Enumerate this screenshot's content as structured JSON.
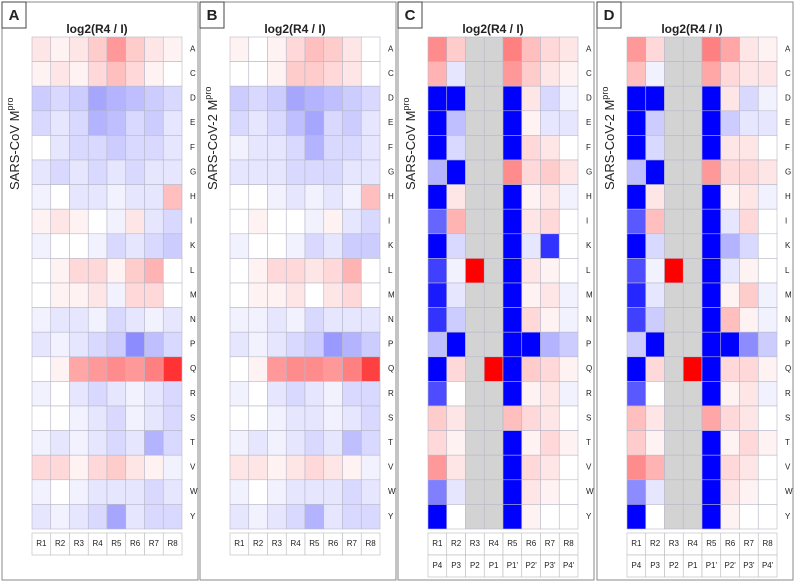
{
  "chart_data": [
    {
      "type": "heatmap",
      "panel_label": "A",
      "title": "log2(R4 / I)",
      "ylabel": "SARS-CoV M",
      "ylabel_superscript": "pro",
      "categories": [
        "R1",
        "R2",
        "R3",
        "R4",
        "R5",
        "R6",
        "R7",
        "R8"
      ],
      "rows": [
        "A",
        "C",
        "D",
        "E",
        "F",
        "G",
        "H",
        "I",
        "K",
        "L",
        "M",
        "N",
        "P",
        "Q",
        "R",
        "S",
        "T",
        "V",
        "W",
        "Y"
      ],
      "zlim": [
        -2,
        2
      ],
      "colors": [
        "#0000ff",
        "#ffffff",
        "#ff0000"
      ],
      "null_color": "#d3d3d3",
      "values": [
        [
          0.2,
          0.1,
          0.2,
          0.4,
          0.8,
          0.4,
          0.2,
          0.1
        ],
        [
          0.1,
          0.2,
          0.1,
          0.3,
          0.5,
          0.3,
          0.1,
          0
        ],
        [
          -0.4,
          -0.3,
          -0.4,
          -0.7,
          -0.6,
          -0.5,
          -0.4,
          -0.3
        ],
        [
          -0.3,
          -0.2,
          -0.3,
          -0.6,
          -0.5,
          -0.3,
          -0.4,
          -0.2
        ],
        [
          0,
          -0.2,
          -0.3,
          -0.3,
          -0.4,
          -0.3,
          -0.3,
          -0.2
        ],
        [
          -0.2,
          -0.3,
          -0.2,
          -0.3,
          -0.2,
          -0.3,
          -0.2,
          -0.2
        ],
        [
          -0.1,
          0,
          -0.2,
          -0.2,
          -0.1,
          -0.2,
          -0.2,
          0.5
        ],
        [
          0.1,
          0.2,
          0.1,
          0,
          -0.1,
          0.2,
          -0.2,
          -0.3
        ],
        [
          -0.1,
          0,
          0,
          -0.1,
          -0.3,
          -0.2,
          -0.3,
          -0.4
        ],
        [
          0,
          0.1,
          0.3,
          0.3,
          0.1,
          0.4,
          0.6,
          0
        ],
        [
          0,
          0.1,
          0.1,
          0.2,
          -0.1,
          0.3,
          0.3,
          0
        ],
        [
          -0.1,
          -0.2,
          -0.2,
          -0.1,
          -0.3,
          -0.2,
          -0.1,
          -0.2
        ],
        [
          -0.2,
          -0.1,
          -0.2,
          -0.3,
          -0.4,
          -0.9,
          -0.5,
          -0.3
        ],
        [
          0,
          0.1,
          0.7,
          0.8,
          0.9,
          0.8,
          1.0,
          1.6
        ],
        [
          -0.1,
          0,
          -0.2,
          -0.3,
          -0.2,
          -0.1,
          -0.2,
          -0.3
        ],
        [
          0,
          0,
          -0.1,
          -0.2,
          -0.3,
          -0.1,
          -0.2,
          -0.3
        ],
        [
          -0.1,
          -0.2,
          -0.1,
          -0.2,
          -0.3,
          -0.2,
          -0.6,
          -0.3
        ],
        [
          0.3,
          0.3,
          0.1,
          0.3,
          0.4,
          0.2,
          0.1,
          -0.1
        ],
        [
          -0.1,
          0,
          -0.1,
          -0.2,
          -0.2,
          -0.2,
          -0.3,
          -0.2
        ],
        [
          -0.2,
          -0.1,
          -0.2,
          -0.3,
          -0.7,
          -0.2,
          -0.3,
          -0.3
        ]
      ]
    },
    {
      "type": "heatmap",
      "panel_label": "B",
      "title": "log2(R4 / I)",
      "ylabel": "SARS-CoV-2 M",
      "ylabel_superscript": "pro",
      "categories": [
        "R1",
        "R2",
        "R3",
        "R4",
        "R5",
        "R6",
        "R7",
        "R8"
      ],
      "rows": [
        "A",
        "C",
        "D",
        "E",
        "F",
        "G",
        "H",
        "I",
        "K",
        "L",
        "M",
        "N",
        "P",
        "Q",
        "R",
        "S",
        "T",
        "V",
        "W",
        "Y"
      ],
      "zlim": [
        -2,
        2
      ],
      "colors": [
        "#0000ff",
        "#ffffff",
        "#ff0000"
      ],
      "null_color": "#d3d3d3",
      "values": [
        [
          0.1,
          0,
          0.1,
          0.3,
          0.5,
          0.4,
          0.2,
          0
        ],
        [
          0,
          0,
          0.1,
          0.4,
          0.4,
          0.3,
          0.2,
          0
        ],
        [
          -0.4,
          -0.3,
          -0.4,
          -0.7,
          -0.6,
          -0.5,
          -0.4,
          -0.3
        ],
        [
          -0.3,
          -0.2,
          -0.3,
          -0.5,
          -0.7,
          -0.3,
          -0.4,
          -0.2
        ],
        [
          -0.1,
          -0.2,
          -0.2,
          -0.3,
          -0.6,
          -0.3,
          -0.3,
          -0.2
        ],
        [
          -0.2,
          -0.2,
          -0.2,
          -0.3,
          -0.3,
          -0.3,
          -0.2,
          -0.2
        ],
        [
          0,
          0,
          -0.1,
          -0.2,
          -0.1,
          -0.2,
          -0.1,
          0.5
        ],
        [
          0,
          0.1,
          0,
          0,
          -0.1,
          0.1,
          -0.2,
          -0.3
        ],
        [
          -0.1,
          0,
          0,
          -0.1,
          -0.3,
          -0.2,
          -0.4,
          -0.4
        ],
        [
          0,
          0.1,
          0.3,
          0.3,
          0.2,
          0.3,
          0.6,
          0
        ],
        [
          0,
          0.1,
          0.1,
          0.2,
          0,
          0.2,
          0.3,
          0
        ],
        [
          -0.1,
          -0.1,
          -0.2,
          -0.1,
          -0.3,
          -0.2,
          -0.2,
          -0.2
        ],
        [
          -0.2,
          -0.1,
          -0.2,
          -0.3,
          -0.4,
          -0.8,
          -0.6,
          -0.4
        ],
        [
          0,
          0.1,
          0.8,
          0.9,
          0.9,
          0.8,
          1.0,
          1.5
        ],
        [
          -0.1,
          0,
          -0.2,
          -0.3,
          -0.2,
          -0.1,
          -0.3,
          -0.3
        ],
        [
          0,
          0,
          -0.1,
          -0.2,
          -0.2,
          -0.1,
          -0.2,
          -0.3
        ],
        [
          -0.1,
          -0.2,
          -0.1,
          -0.2,
          -0.3,
          -0.2,
          -0.5,
          -0.3
        ],
        [
          0.2,
          0.2,
          0.1,
          0.2,
          0.3,
          0.2,
          0.1,
          -0.1
        ],
        [
          -0.1,
          0,
          -0.1,
          -0.2,
          -0.2,
          -0.2,
          -0.3,
          -0.2
        ],
        [
          -0.2,
          -0.1,
          -0.2,
          -0.3,
          -0.6,
          -0.2,
          -0.3,
          -0.3
        ]
      ]
    },
    {
      "type": "heatmap",
      "panel_label": "C",
      "title": "log2(R4 / I)",
      "ylabel": "SARS-CoV M",
      "ylabel_superscript": "pro",
      "categories": [
        "R1",
        "R2",
        "R3",
        "R4",
        "R5",
        "R6",
        "R7",
        "R8"
      ],
      "categories2": [
        "P4",
        "P3",
        "P2",
        "P1",
        "P1'",
        "P2'",
        "P3'",
        "P4'"
      ],
      "rows": [
        "A",
        "C",
        "D",
        "E",
        "F",
        "G",
        "H",
        "I",
        "K",
        "L",
        "M",
        "N",
        "P",
        "Q",
        "R",
        "S",
        "T",
        "V",
        "W",
        "Y"
      ],
      "zlim": [
        -2,
        2
      ],
      "colors": [
        "#0000ff",
        "#ffffff",
        "#ff0000"
      ],
      "null_color": "#d3d3d3",
      "values": [
        [
          0.9,
          0.4,
          null,
          null,
          1.0,
          0.5,
          0.3,
          0.2
        ],
        [
          0.6,
          -0.2,
          null,
          null,
          0.8,
          0.4,
          0.2,
          0.1
        ],
        [
          -2,
          -2,
          null,
          null,
          -2,
          0.2,
          -0.3,
          -0.1
        ],
        [
          -2,
          -0.5,
          null,
          null,
          -2,
          0.1,
          -0.2,
          -0.2
        ],
        [
          -2,
          -0.3,
          null,
          null,
          -2,
          0.3,
          0.2,
          0
        ],
        [
          -0.6,
          -2,
          null,
          null,
          0.9,
          0.3,
          0.4,
          0.2
        ],
        [
          -2,
          0.2,
          null,
          null,
          -2,
          0.1,
          0.2,
          -0.1
        ],
        [
          -1.2,
          0.6,
          null,
          null,
          -2,
          0.2,
          0.3,
          0
        ],
        [
          -2,
          -0.3,
          null,
          null,
          -2,
          -0.2,
          -1.6,
          0
        ],
        [
          -1.5,
          -0.1,
          2,
          null,
          -2,
          0.2,
          0.1,
          0
        ],
        [
          -1.8,
          -0.2,
          null,
          null,
          -2,
          0.1,
          0.2,
          -0.1
        ],
        [
          -1.6,
          -0.4,
          null,
          null,
          -2,
          0.3,
          0.1,
          -0.1
        ],
        [
          -0.5,
          -2,
          null,
          null,
          -2,
          -2,
          -0.6,
          -0.4
        ],
        [
          -2,
          0.3,
          null,
          2,
          -2,
          0.4,
          0.3,
          0.1
        ],
        [
          -1.4,
          0,
          null,
          null,
          -2,
          0.1,
          0.2,
          -0.1
        ],
        [
          0.4,
          0.2,
          null,
          null,
          0.5,
          0.3,
          0.2,
          0
        ],
        [
          0.3,
          0.1,
          null,
          null,
          -2,
          0.1,
          0.3,
          0.1
        ],
        [
          0.8,
          0.2,
          null,
          null,
          -2,
          0.3,
          0.2,
          0
        ],
        [
          -1,
          -0.2,
          null,
          null,
          -2,
          0.2,
          0.1,
          0
        ],
        [
          -2,
          0,
          null,
          null,
          -2,
          0.1,
          0,
          0
        ]
      ]
    },
    {
      "type": "heatmap",
      "panel_label": "D",
      "title": "log2(R4 / I)",
      "ylabel": "SARS-CoV-2 M",
      "ylabel_superscript": "pro",
      "categories": [
        "R1",
        "R2",
        "R3",
        "R4",
        "R5",
        "R6",
        "R7",
        "R8"
      ],
      "categories2": [
        "P4",
        "P3",
        "P2",
        "P1",
        "P1'",
        "P2'",
        "P3'",
        "P4'"
      ],
      "rows": [
        "A",
        "C",
        "D",
        "E",
        "F",
        "G",
        "H",
        "I",
        "K",
        "L",
        "M",
        "N",
        "P",
        "Q",
        "R",
        "S",
        "T",
        "V",
        "W",
        "Y"
      ],
      "zlim": [
        -2,
        2
      ],
      "colors": [
        "#0000ff",
        "#ffffff",
        "#ff0000"
      ],
      "null_color": "#d3d3d3",
      "values": [
        [
          0.8,
          0.3,
          null,
          null,
          1.0,
          0.7,
          0.2,
          0.1
        ],
        [
          0.5,
          -0.1,
          null,
          null,
          0.7,
          0.3,
          0.2,
          0.2
        ],
        [
          -2,
          -2,
          null,
          null,
          -2,
          0.2,
          -0.3,
          -0.1
        ],
        [
          -2,
          -0.4,
          null,
          null,
          -2,
          -0.4,
          -0.2,
          -0.2
        ],
        [
          -2,
          -0.3,
          null,
          null,
          -2,
          0.2,
          0.2,
          0
        ],
        [
          -0.5,
          -2,
          null,
          null,
          0.8,
          0.3,
          0.3,
          0.2
        ],
        [
          -2,
          0.2,
          null,
          null,
          -2,
          0.1,
          0.2,
          -0.1
        ],
        [
          -1.3,
          0.5,
          null,
          null,
          -2,
          -0.2,
          0.3,
          0
        ],
        [
          -2,
          -0.3,
          null,
          null,
          -2,
          -0.6,
          -0.3,
          0
        ],
        [
          -1.4,
          -0.1,
          2,
          null,
          -2,
          -0.2,
          0.1,
          0
        ],
        [
          -1.7,
          -0.2,
          null,
          null,
          -2,
          0.1,
          0.4,
          -0.1
        ],
        [
          -1.5,
          -0.4,
          null,
          null,
          -2,
          0.5,
          0.1,
          -0.1
        ],
        [
          -0.4,
          -2,
          null,
          null,
          -2,
          -2,
          -0.9,
          -0.4
        ],
        [
          -2,
          0.3,
          null,
          2,
          -2,
          0.3,
          0.3,
          0.1
        ],
        [
          -1.3,
          0,
          null,
          null,
          -2,
          0.1,
          0.2,
          -0.1
        ],
        [
          0.5,
          0.2,
          null,
          null,
          0.7,
          0.3,
          0.2,
          0
        ],
        [
          0.4,
          0.1,
          null,
          null,
          -2,
          0.1,
          0.3,
          0.1
        ],
        [
          0.9,
          0.6,
          null,
          null,
          -2,
          0.3,
          0.2,
          0
        ],
        [
          -0.9,
          -0.2,
          null,
          null,
          -2,
          0.2,
          0.1,
          0
        ],
        [
          -2,
          0,
          null,
          null,
          -2,
          0.1,
          0,
          0
        ]
      ]
    }
  ]
}
